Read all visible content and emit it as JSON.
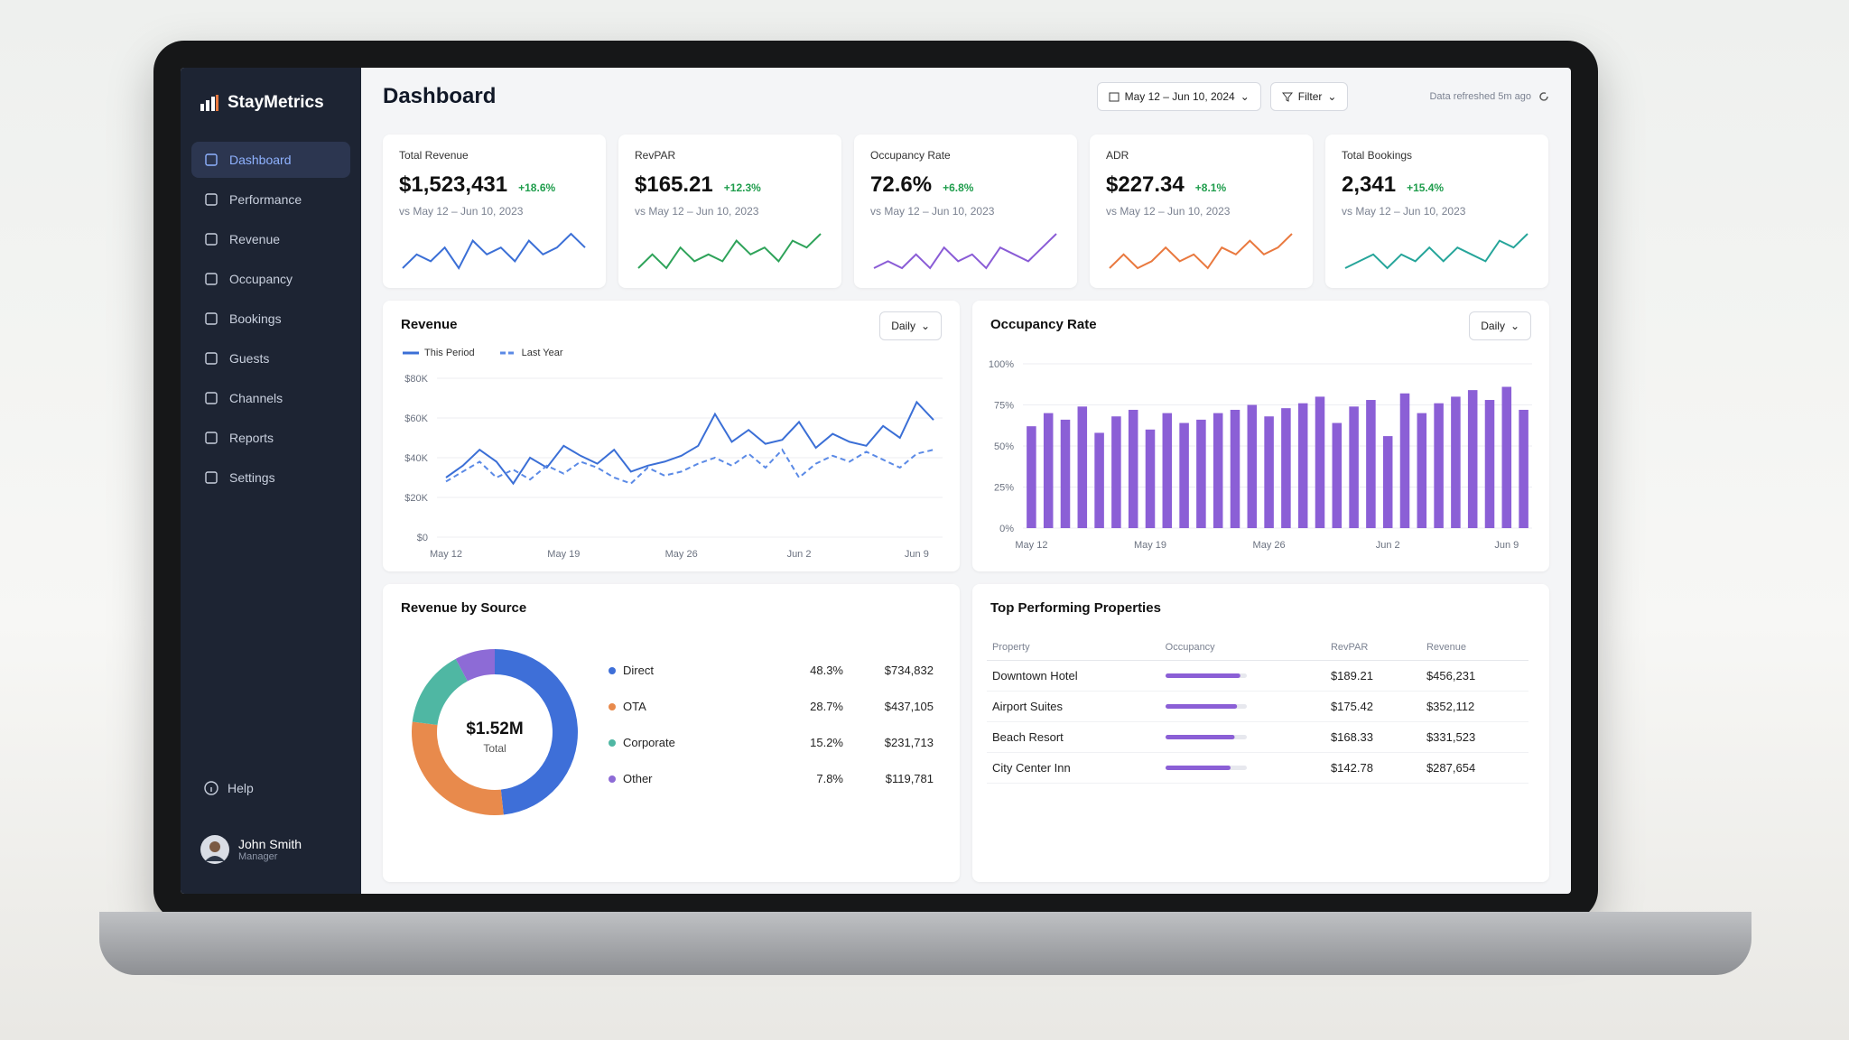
{
  "sidebar": {
    "brand": "StayMetrics",
    "nav": [
      "Dashboard",
      "Performance",
      "Revenue",
      "Occupancy",
      "Bookings",
      "Guests",
      "Channels",
      "Reports",
      "Settings"
    ],
    "help": "Help",
    "user": {
      "name": "John Smith",
      "role": "Manager"
    }
  },
  "header": {
    "title": "Dashboard",
    "date_range": "May 12 – Jun 10, 2024",
    "filter": "Filter",
    "refreshed": "Data refreshed 5m ago"
  },
  "kpis": [
    {
      "label": "Total Revenue",
      "value": "$1,523,431",
      "change": "+18.6%",
      "compare": "vs May 12 – Jun 10, 2023",
      "color": "#3b6fd6",
      "trend": [
        3,
        5,
        4,
        6,
        3,
        7,
        5,
        6,
        4,
        7,
        5,
        6,
        8,
        6
      ]
    },
    {
      "label": "RevPAR",
      "value": "$165.21",
      "change": "+12.3%",
      "compare": "vs May 12 – Jun 10, 2023",
      "color": "#2fa35a",
      "trend": [
        3,
        5,
        3,
        6,
        4,
        5,
        4,
        7,
        5,
        6,
        4,
        7,
        6,
        8
      ]
    },
    {
      "label": "Occupancy Rate",
      "value": "72.6%",
      "change": "+6.8%",
      "compare": "vs May 12 – Jun 10, 2023",
      "color": "#8a5cd6",
      "trend": [
        3,
        4,
        3,
        5,
        3,
        6,
        4,
        5,
        3,
        6,
        5,
        4,
        6,
        8
      ]
    },
    {
      "label": "ADR",
      "value": "$227.34",
      "change": "+8.1%",
      "compare": "vs May 12 – Jun 10, 2023",
      "color": "#e9793f",
      "trend": [
        3,
        5,
        3,
        4,
        6,
        4,
        5,
        3,
        6,
        5,
        7,
        5,
        6,
        8
      ]
    },
    {
      "label": "Total Bookings",
      "value": "2,341",
      "change": "+15.4%",
      "compare": "vs May 12 – Jun 10, 2023",
      "color": "#26a59a",
      "trend": [
        3,
        4,
        5,
        3,
        5,
        4,
        6,
        4,
        6,
        5,
        4,
        7,
        6,
        8
      ]
    }
  ],
  "revenue_chart": {
    "type": "line",
    "title": "Revenue",
    "period_selector": "Daily",
    "categories": [
      "May 12",
      null,
      null,
      null,
      null,
      null,
      null,
      "May 19",
      null,
      null,
      null,
      null,
      null,
      null,
      "May 26",
      null,
      null,
      null,
      null,
      null,
      null,
      "Jun 2",
      null,
      null,
      null,
      null,
      null,
      null,
      "Jun 9",
      null
    ],
    "ylim": [
      0,
      80000
    ],
    "yticks": [
      {
        "value": 0,
        "label": "$0"
      },
      {
        "value": 20000,
        "label": "$20K"
      },
      {
        "value": 40000,
        "label": "$40K"
      },
      {
        "value": 60000,
        "label": "$60K"
      },
      {
        "value": 80000,
        "label": "$80K"
      }
    ],
    "series": [
      {
        "name": "This Period",
        "color": "#3b6fd6",
        "dashed": false,
        "values": [
          30000,
          36000,
          44000,
          38000,
          27000,
          40000,
          35000,
          46000,
          41000,
          37000,
          44000,
          33000,
          36000,
          38000,
          41000,
          46000,
          62000,
          48000,
          54000,
          47000,
          49000,
          58000,
          45000,
          52000,
          48000,
          46000,
          56000,
          50000,
          68000,
          59000
        ]
      },
      {
        "name": "Last Year",
        "color": "#5b8ae6",
        "dashed": true,
        "values": [
          28000,
          33000,
          38000,
          30000,
          34000,
          29000,
          36000,
          32000,
          38000,
          35000,
          30000,
          27000,
          35000,
          31000,
          33000,
          37000,
          40000,
          36000,
          42000,
          35000,
          44000,
          30000,
          37000,
          41000,
          38000,
          43000,
          39000,
          35000,
          42000,
          44000
        ]
      }
    ]
  },
  "occupancy_chart": {
    "type": "bar",
    "title": "Occupancy Rate",
    "period_selector": "Daily",
    "color": "#8b5fd6",
    "categories": [
      "May 12",
      null,
      null,
      null,
      null,
      null,
      null,
      "May 19",
      null,
      null,
      null,
      null,
      null,
      null,
      "May 26",
      null,
      null,
      null,
      null,
      null,
      null,
      "Jun 2",
      null,
      null,
      null,
      null,
      null,
      null,
      "Jun 9",
      null
    ],
    "values": [
      62,
      70,
      66,
      74,
      58,
      68,
      72,
      60,
      70,
      64,
      66,
      70,
      72,
      75,
      68,
      73,
      76,
      80,
      64,
      74,
      78,
      56,
      82,
      70,
      76,
      80,
      84,
      78,
      86,
      72
    ],
    "ylim": [
      0,
      100
    ],
    "yticks": [
      {
        "value": 0,
        "label": "0%"
      },
      {
        "value": 25,
        "label": "25%"
      },
      {
        "value": 50,
        "label": "50%"
      },
      {
        "value": 75,
        "label": "75%"
      },
      {
        "value": 100,
        "label": "100%"
      }
    ]
  },
  "revenue_source": {
    "type": "pie",
    "title": "Revenue by Source",
    "center_value": "$1.52M",
    "center_label": "Total",
    "categories": [
      "Direct",
      "OTA",
      "Corporate",
      "Other"
    ],
    "values": [
      48.3,
      28.7,
      15.2,
      7.8
    ],
    "value_labels": [
      "48.3%",
      "28.7%",
      "15.2%",
      "7.8%"
    ],
    "amounts": [
      "$734,832",
      "$437,105",
      "$231,713",
      "$119,781"
    ],
    "colors": [
      "#3e6fd8",
      "#e88a4c",
      "#4fb7a3",
      "#8d6bd6"
    ]
  },
  "top_properties": {
    "title": "Top Performing Properties",
    "bar_color": "#8b5fd6",
    "columns": [
      "Property",
      "Occupancy",
      "RevPAR",
      "Revenue"
    ],
    "rows": [
      {
        "property": "Downtown Hotel",
        "occupancy": 92,
        "revpar": "$189.21",
        "revenue": "$456,231"
      },
      {
        "property": "Airport Suites",
        "occupancy": 88,
        "revpar": "$175.42",
        "revenue": "$352,112"
      },
      {
        "property": "Beach Resort",
        "occupancy": 85,
        "revpar": "$168.33",
        "revenue": "$331,523"
      },
      {
        "property": "City Center Inn",
        "occupancy": 80,
        "revpar": "$142.78",
        "revenue": "$287,654"
      }
    ]
  }
}
